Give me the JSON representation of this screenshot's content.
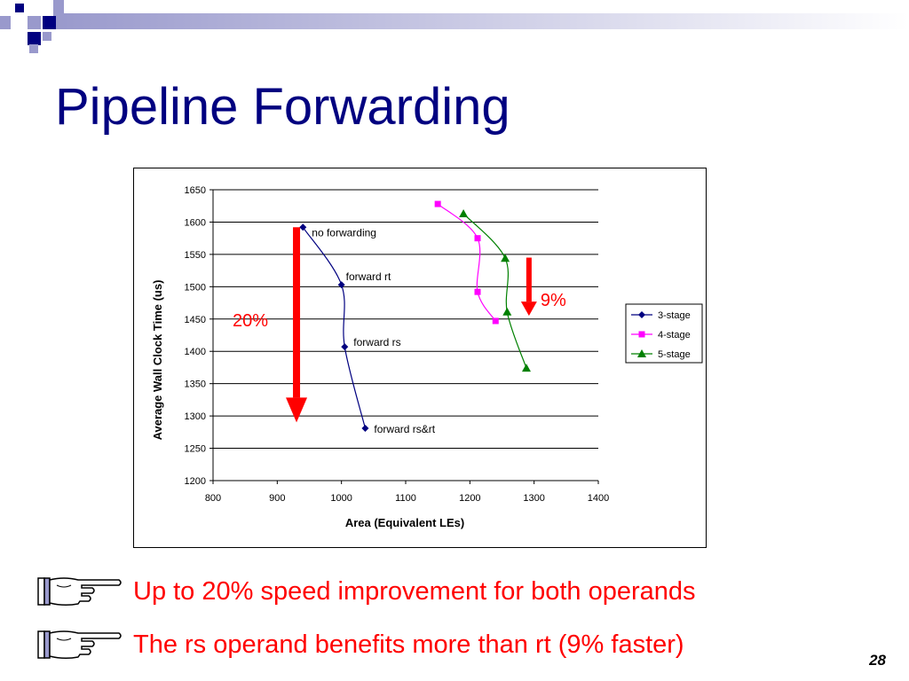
{
  "slide": {
    "title": "Pipeline Forwarding",
    "bullets": [
      "Up to 20% speed improvement for both operands",
      "The rs operand benefits more than rt (9% faster)"
    ],
    "page_number": "28",
    "colors": {
      "title": "#000080",
      "bullet_text": "#ff0000",
      "deco_light": "#9999cc",
      "deco_dark": "#000080"
    },
    "icons": {
      "bullet": "pointing-hand-icon"
    }
  },
  "chart_data": {
    "type": "scatter",
    "title": "",
    "xlabel": "Area (Equivalent LEs)",
    "ylabel": "Average Wall Clock Time (us)",
    "xlim": [
      800,
      1400
    ],
    "ylim": [
      1200,
      1650
    ],
    "xticks": [
      800,
      900,
      1000,
      1100,
      1200,
      1300,
      1400
    ],
    "yticks": [
      1200,
      1250,
      1300,
      1350,
      1400,
      1450,
      1500,
      1550,
      1600,
      1650
    ],
    "grid": "horizontal",
    "legend_position": "right",
    "series": [
      {
        "name": "3-stage",
        "color": "#000080",
        "marker": "diamond",
        "points": [
          {
            "x": 940,
            "y": 1592
          },
          {
            "x": 1000,
            "y": 1503
          },
          {
            "x": 1005,
            "y": 1407
          },
          {
            "x": 1037,
            "y": 1281
          }
        ]
      },
      {
        "name": "4-stage",
        "color": "#ff00ff",
        "marker": "square",
        "points": [
          {
            "x": 1150,
            "y": 1628
          },
          {
            "x": 1212,
            "y": 1575
          },
          {
            "x": 1212,
            "y": 1492
          },
          {
            "x": 1240,
            "y": 1447
          }
        ]
      },
      {
        "name": "5-stage",
        "color": "#008000",
        "marker": "triangle",
        "points": [
          {
            "x": 1190,
            "y": 1613
          },
          {
            "x": 1255,
            "y": 1544
          },
          {
            "x": 1258,
            "y": 1461
          },
          {
            "x": 1288,
            "y": 1374
          }
        ]
      }
    ],
    "point_labels": [
      {
        "text": "no forwarding",
        "x": 940,
        "y": 1592
      },
      {
        "text": "forward rt",
        "x": 1000,
        "y": 1503
      },
      {
        "text": "forward rs",
        "x": 1005,
        "y": 1407
      },
      {
        "text": "forward rs&rt",
        "x": 1037,
        "y": 1281
      }
    ],
    "annotations": [
      {
        "text": "20%",
        "color": "#ff0000",
        "arrow_from": [
          930,
          1592
        ],
        "arrow_to": [
          930,
          1290
        ]
      },
      {
        "text": "9%",
        "color": "#ff0000",
        "arrow_from": [
          1292,
          1545
        ],
        "arrow_to": [
          1292,
          1455
        ]
      }
    ]
  }
}
